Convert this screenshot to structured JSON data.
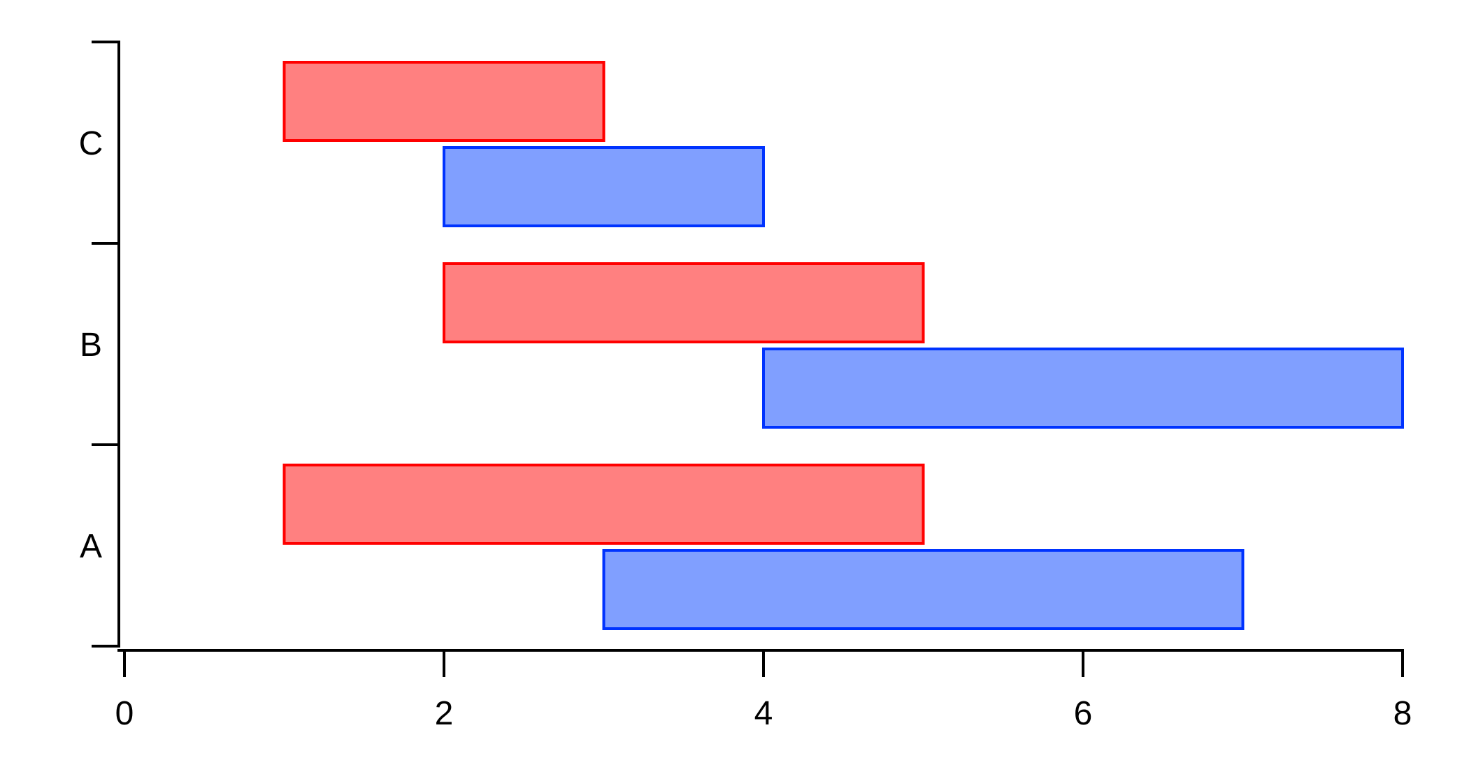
{
  "chart_data": {
    "type": "bar",
    "orientation": "horizontal",
    "bar_style": "floating range",
    "categories": [
      "A",
      "B",
      "C"
    ],
    "series": [
      {
        "color": "#ff0000",
        "fill": "#ff8080",
        "ranges": [
          [
            1,
            5
          ],
          [
            2,
            5
          ],
          [
            1,
            3
          ]
        ]
      },
      {
        "color": "#0033ff",
        "fill": "#809fff",
        "ranges": [
          [
            3,
            7
          ],
          [
            4,
            8
          ],
          [
            2,
            4
          ]
        ]
      }
    ],
    "xlim": [
      0,
      8
    ],
    "x_ticks": [
      0,
      2,
      4,
      6,
      8
    ],
    "title": "",
    "xlabel": "",
    "ylabel": "",
    "grid": false,
    "legend": "none"
  }
}
